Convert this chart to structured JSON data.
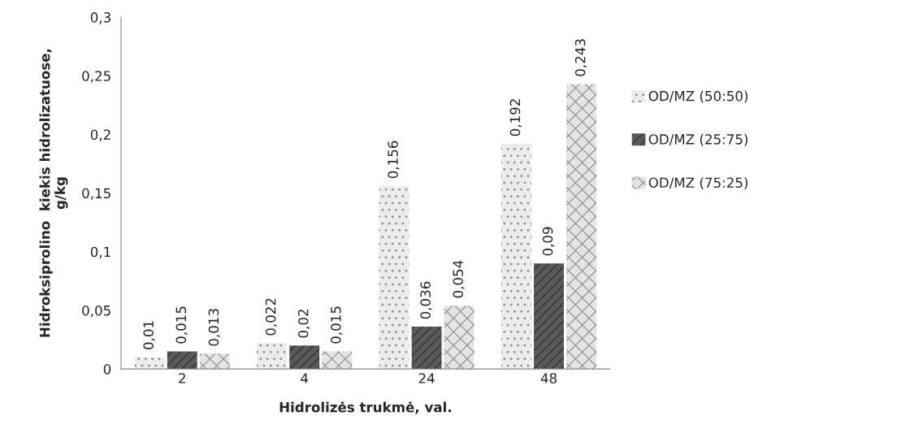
{
  "chart_data": {
    "type": "bar",
    "xlabel": "Hidrolizės trukmė, val.",
    "ylabel": "Hidroksiprolino  kiekis hidrolizatuose,\ng/kg",
    "categories": [
      "2",
      "4",
      "24",
      "48"
    ],
    "series": [
      {
        "name": "OD/MZ (50:50)",
        "color": "#ececec",
        "values": [
          0.01,
          0.022,
          0.156,
          0.192
        ],
        "value_labels": [
          "0,01",
          "0,022",
          "0,156",
          "0,192"
        ]
      },
      {
        "name": "OD/MZ (25:75)",
        "color": "#595959",
        "values": [
          0.015,
          0.02,
          0.036,
          0.09
        ],
        "value_labels": [
          "0,015",
          "0,02",
          "0,036",
          "0,09"
        ]
      },
      {
        "name": "OD/MZ (75:25)",
        "color": "#e4e4e4",
        "values": [
          0.013,
          0.015,
          0.054,
          0.243
        ],
        "value_labels": [
          "0,013",
          "0,015",
          "0,054",
          "0,243"
        ]
      }
    ],
    "ylim": [
      0,
      0.3
    ],
    "yticks": [
      {
        "value": 0,
        "label": "0"
      },
      {
        "value": 0.05,
        "label": "0,05"
      },
      {
        "value": 0.1,
        "label": "0,1"
      },
      {
        "value": 0.15,
        "label": "0,15"
      },
      {
        "value": 0.2,
        "label": "0,2"
      },
      {
        "value": 0.25,
        "label": "0,25"
      },
      {
        "value": 0.3,
        "label": "0,3"
      }
    ],
    "grid": false,
    "legend": "right"
  }
}
